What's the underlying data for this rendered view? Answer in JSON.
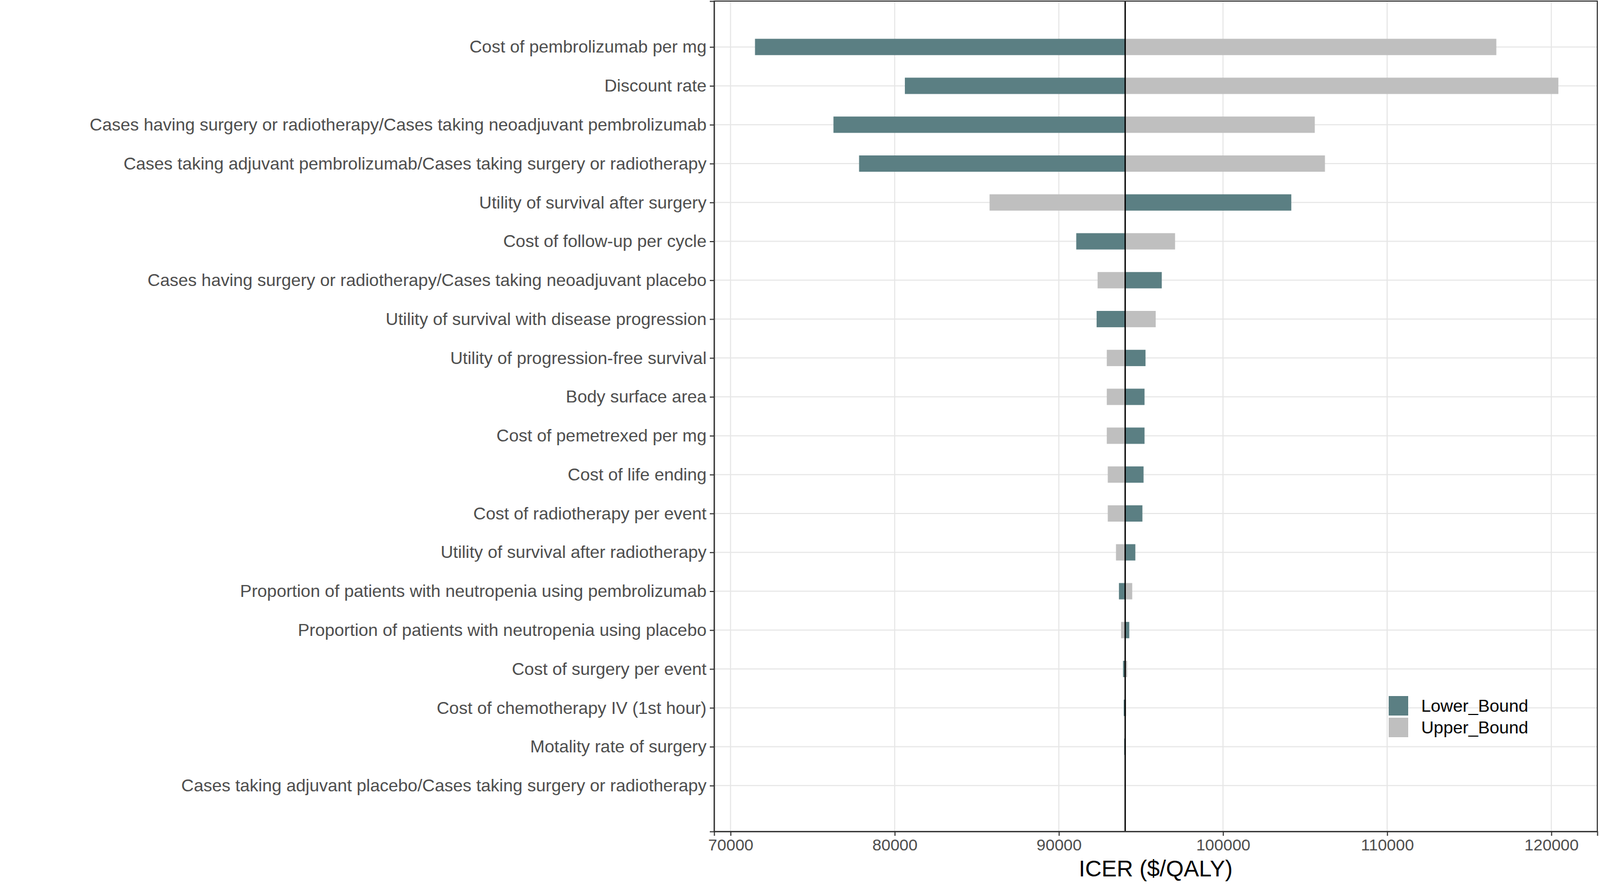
{
  "chart_data": {
    "type": "bar",
    "orientation": "horizontal",
    "x_label": "ICER ($/QALY)",
    "categories": [
      "Cost of pembrolizumab per mg",
      "Discount rate",
      "Cases having surgery or radiotherapy/Cases taking neoadjuvant pembrolizumab",
      "Cases taking adjuvant pembrolizumab/Cases taking surgery or radiotherapy",
      "Utility of survival after surgery",
      "Cost of follow-up per cycle",
      "Cases having surgery or radiotherapy/Cases taking neoadjuvant placebo",
      "Utility of survival with disease progression",
      "Utility of progression-free survival",
      "Body surface area",
      "Cost of pemetrexed per mg",
      "Cost of life ending",
      "Cost of radiotherapy per event",
      "Utility of survival after radiotherapy",
      "Proportion of patients with neutropenia using pembrolizumab",
      "Proportion of patients with neutropenia using placebo",
      "Cost of surgery per event",
      "Cost of chemotherapy IV (1st hour)",
      "Motality rate of surgery",
      "Cases taking adjuvant placebo/Cases taking surgery or radiotherapy"
    ],
    "base_icer": 94040,
    "series": [
      {
        "name": "Lower_Bound",
        "color": "#5b7f83",
        "values": [
          71490,
          80620,
          76270,
          77830,
          104160,
          91060,
          96270,
          92300,
          95280,
          95220,
          95220,
          95160,
          95090,
          94660,
          93660,
          94290,
          93910,
          93950,
          93980,
          94020
        ]
      },
      {
        "name": "Upper_Bound",
        "color": "#bfbfbf",
        "values": [
          116650,
          120430,
          105590,
          106210,
          85780,
          97080,
          92360,
          95900,
          92920,
          92920,
          92920,
          92980,
          92980,
          93480,
          94470,
          93790,
          94160,
          94100,
          94060,
          94060
        ]
      }
    ],
    "xlim": [
      69000,
      122800
    ],
    "xticks": [
      70000,
      80000,
      90000,
      100000,
      110000,
      120000
    ],
    "grid": true,
    "legend": "lower right"
  }
}
